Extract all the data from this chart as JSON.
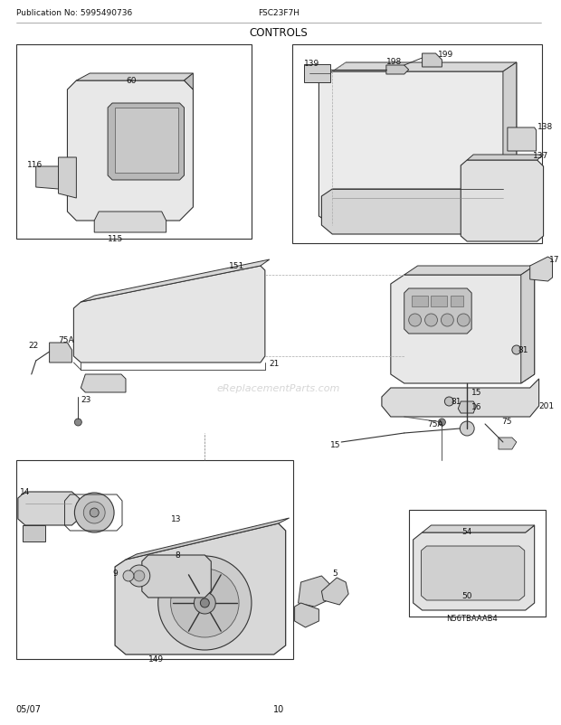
{
  "title": "CONTROLS",
  "header_left": "Publication No: 5995490736",
  "header_center": "FSC23F7H",
  "footer_left": "05/07",
  "footer_center": "10",
  "bg_color": "#ffffff",
  "text_color": "#111111",
  "watermark": "eReplacementParts.com",
  "line_color": "#333333",
  "light_gray": "#cccccc",
  "mid_gray": "#aaaaaa",
  "fig_w": 6.2,
  "fig_h": 8.03,
  "dpi": 100
}
